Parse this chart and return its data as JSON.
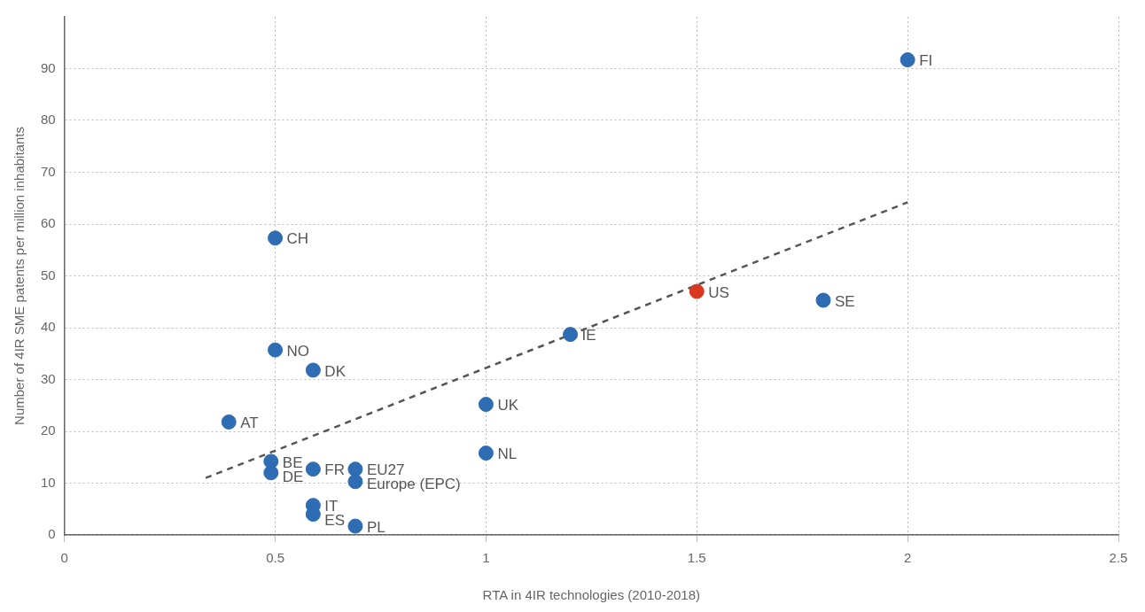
{
  "chart_data": {
    "type": "scatter",
    "xlabel": "RTA in 4IR technologies (2010-2018)",
    "ylabel": "Number of 4IR SME patents per million inhabitants",
    "xlim": [
      0,
      2.5
    ],
    "xticks": [
      0,
      0.5,
      1,
      1.5,
      2,
      2.5
    ],
    "ylim": [
      0,
      100
    ],
    "yticks": [
      0,
      10,
      20,
      30,
      40,
      50,
      60,
      70,
      80,
      90
    ],
    "grid": true,
    "legend": false,
    "series": [
      {
        "type": "scatter",
        "marker": "circle",
        "x": [
          2.0,
          0.5,
          1.5,
          1.8,
          1.2,
          0.5,
          0.59,
          1.0,
          0.39,
          1.0,
          0.49,
          0.59,
          0.69,
          0.49,
          0.69,
          0.59,
          0.59,
          0.69
        ],
        "values": [
          91.7,
          57.3,
          47,
          45.3,
          38.7,
          35.7,
          31.8,
          25.2,
          21.8,
          15.8,
          14.2,
          12.7,
          12.7,
          12,
          10.3,
          5.7,
          4,
          1.7
        ],
        "colors": [
          "#2e6db4",
          "#2e6db4",
          "#d9381e",
          "#2e6db4",
          "#2e6db4",
          "#2e6db4",
          "#2e6db4",
          "#2e6db4",
          "#2e6db4",
          "#2e6db4",
          "#2e6db4",
          "#2e6db4",
          "#2e6db4",
          "#2e6db4",
          "#2e6db4",
          "#2e6db4",
          "#2e6db4",
          "#2e6db4"
        ]
      },
      {
        "type": "line",
        "x": [
          0.335,
          2.0
        ],
        "values": [
          11,
          64.2
        ],
        "color": "#555555",
        "line_style": "dashed",
        "marker": "none"
      }
    ],
    "annotations": [
      {
        "text": "FI",
        "x": 2.0,
        "y": 91.7
      },
      {
        "text": "CH",
        "x": 0.5,
        "y": 57.3
      },
      {
        "text": "US",
        "x": 1.5,
        "y": 47
      },
      {
        "text": "SE",
        "x": 1.8,
        "y": 45.3
      },
      {
        "text": "IE",
        "x": 1.2,
        "y": 38.7
      },
      {
        "text": "NO",
        "x": 0.5,
        "y": 35.7
      },
      {
        "text": "DK",
        "x": 0.59,
        "y": 31.8
      },
      {
        "text": "UK",
        "x": 1.0,
        "y": 25.2
      },
      {
        "text": "AT",
        "x": 0.39,
        "y": 21.8
      },
      {
        "text": "NL",
        "x": 1.0,
        "y": 15.8
      },
      {
        "text": "BE",
        "x": 0.49,
        "y": 14.2
      },
      {
        "text": "FR",
        "x": 0.59,
        "y": 12.7
      },
      {
        "text": "EU27",
        "x": 0.69,
        "y": 12.7
      },
      {
        "text": "DE",
        "x": 0.49,
        "y": 12
      },
      {
        "text": "Europe (EPC)",
        "x": 0.69,
        "y": 10.3
      },
      {
        "text": "IT",
        "x": 0.59,
        "y": 5.7
      },
      {
        "text": "ES",
        "x": 0.59,
        "y": 4
      },
      {
        "text": "PL",
        "x": 0.69,
        "y": 1.7
      }
    ]
  }
}
